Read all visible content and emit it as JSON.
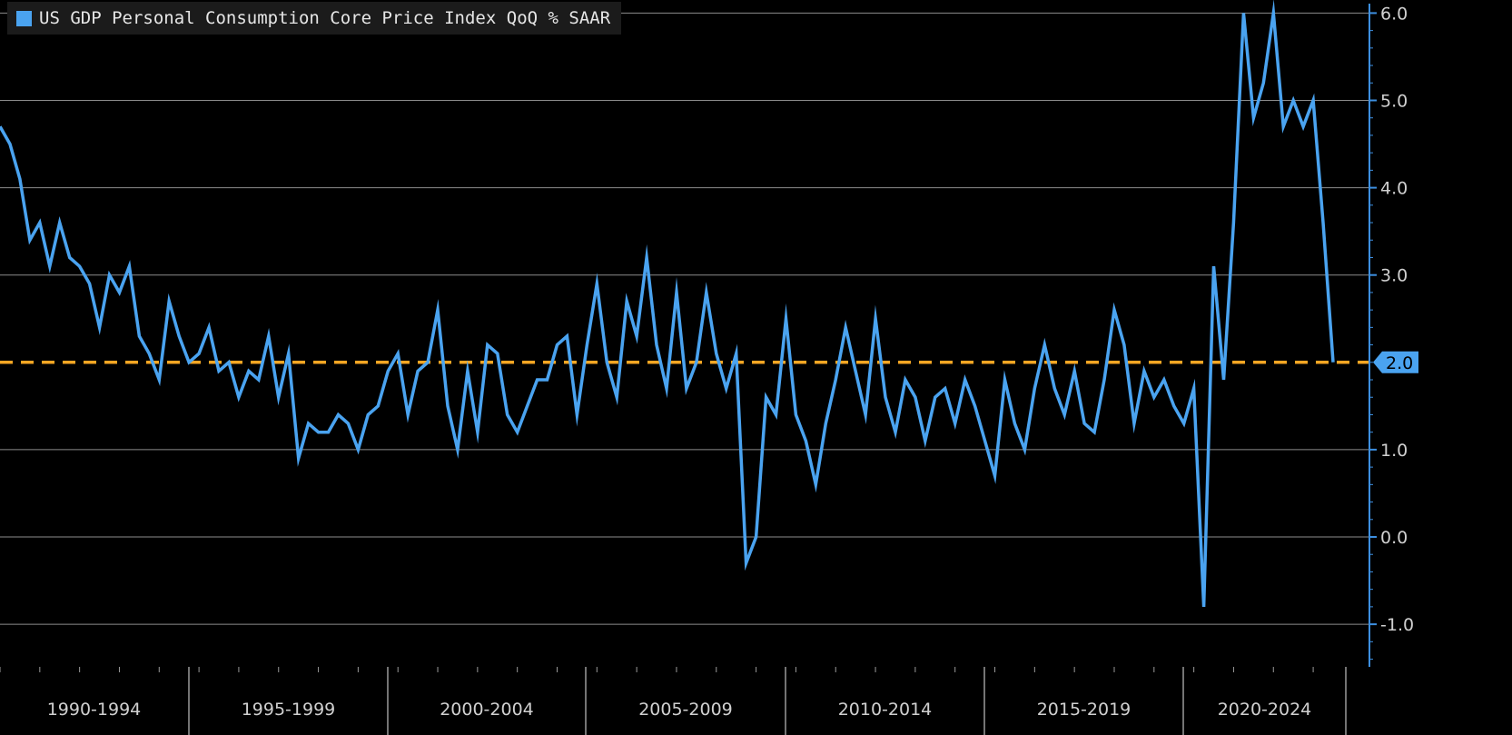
{
  "colors": {
    "background": "#000000",
    "series": "#4aa3f0",
    "target_line": "#f5a623",
    "gridline": "#8c8c8c",
    "axis": "#3d8fe0",
    "tick_label": "#d0d0d0",
    "badge_text": "#000000"
  },
  "chart_data": {
    "type": "line",
    "title": "",
    "legend": {
      "placement": "top-left",
      "entries": [
        "US GDP Personal Consumption Core Price Index QoQ % SAAR"
      ]
    },
    "y_axis": {
      "side": "right",
      "range": [
        -1.5,
        6.1
      ],
      "ticks": [
        6.0,
        5.0,
        4.0,
        3.0,
        2.0,
        1.0,
        0.0,
        -1.0
      ],
      "tick_labels": [
        "6.0",
        "5.0",
        "4.0",
        "3.0",
        "2.0",
        "1.0",
        "0.0",
        "-1.0"
      ],
      "grid": true
    },
    "x_axis": {
      "range": [
        "1990 Q1",
        "2024 Q2"
      ],
      "period_labels": [
        "1990-1994",
        "1995-1999",
        "2000-2004",
        "2005-2009",
        "2010-2014",
        "2015-2019",
        "2020-2024"
      ]
    },
    "reference_line": {
      "value": 2.0,
      "label": "2.0",
      "style": "dashed"
    },
    "series": [
      {
        "name": "US GDP Personal Consumption Core Price Index QoQ % SAAR",
        "start": "1990 Q1",
        "frequency": "quarterly",
        "values": [
          4.7,
          4.5,
          4.1,
          3.4,
          3.6,
          3.1,
          3.6,
          3.2,
          3.1,
          2.9,
          2.4,
          3.0,
          2.8,
          3.1,
          2.3,
          2.1,
          1.8,
          2.7,
          2.3,
          2.0,
          2.1,
          2.4,
          1.9,
          2.0,
          1.6,
          1.9,
          1.8,
          2.3,
          1.6,
          2.1,
          0.9,
          1.3,
          1.2,
          1.2,
          1.4,
          1.3,
          1.0,
          1.4,
          1.5,
          1.9,
          2.1,
          1.4,
          1.9,
          2.0,
          2.6,
          1.5,
          1.0,
          1.9,
          1.2,
          2.2,
          2.1,
          1.4,
          1.2,
          1.5,
          1.8,
          1.8,
          2.2,
          2.3,
          1.4,
          2.2,
          2.9,
          2.0,
          1.6,
          2.7,
          2.3,
          3.2,
          2.2,
          1.7,
          2.8,
          1.7,
          2.0,
          2.8,
          2.1,
          1.7,
          2.1,
          -0.3,
          0.0,
          1.6,
          1.4,
          2.5,
          1.4,
          1.1,
          0.6,
          1.3,
          1.8,
          2.4,
          1.9,
          1.4,
          2.5,
          1.6,
          1.2,
          1.8,
          1.6,
          1.1,
          1.6,
          1.7,
          1.3,
          1.8,
          1.5,
          1.1,
          0.7,
          1.8,
          1.3,
          1.0,
          1.7,
          2.2,
          1.7,
          1.4,
          1.9,
          1.3,
          1.2,
          1.8,
          2.6,
          2.2,
          1.3,
          1.9,
          1.6,
          1.8,
          1.5,
          1.3,
          1.7,
          -0.8,
          3.1,
          1.8,
          3.6,
          6.0,
          4.8,
          5.2,
          6.0,
          4.7,
          5.0,
          4.7,
          5.0,
          3.6,
          2.0
        ]
      }
    ]
  }
}
